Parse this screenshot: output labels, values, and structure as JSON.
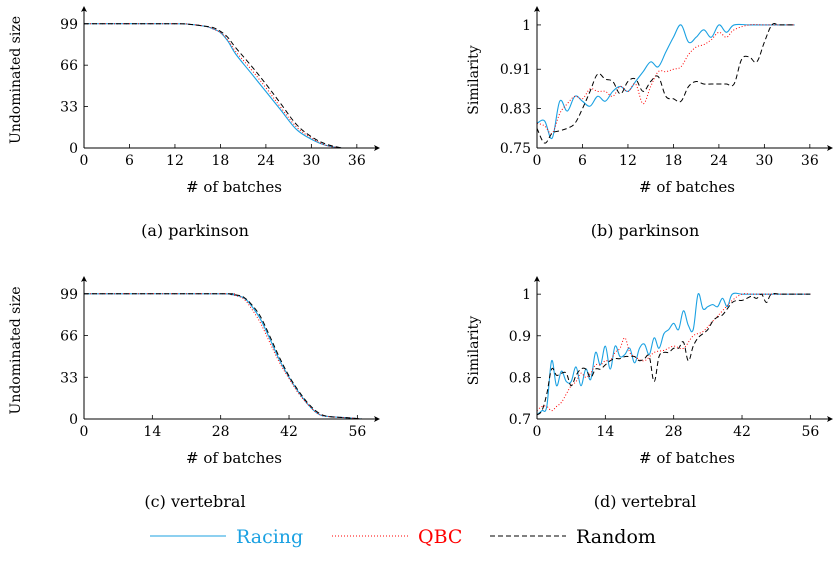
{
  "colors": {
    "racing": "#1ba1e2",
    "qbc": "#ff0000",
    "random": "#000000"
  },
  "legend": {
    "entries": [
      "Racing",
      "QBC",
      "Random"
    ],
    "placement": "bottom-center"
  },
  "chart_data": [
    {
      "type": "line",
      "caption": "(a)  parkinson",
      "xlabel": "# of batches",
      "ylabel": "Undominated size",
      "xlim": [
        0,
        38
      ],
      "ylim": [
        0,
        102
      ],
      "xticks": [
        0,
        6,
        12,
        18,
        24,
        30,
        36
      ],
      "yticks": [
        0,
        33,
        66,
        99
      ],
      "xtick_labels": [
        "0",
        "6",
        "12",
        "18",
        "24",
        "30",
        "36"
      ],
      "ytick_labels": [
        "0",
        "33",
        "66",
        "99"
      ],
      "series": [
        {
          "name": "Racing",
          "style": "solid",
          "x": [
            0,
            12,
            14,
            16,
            17,
            18,
            19,
            20,
            22,
            24,
            26,
            28,
            30,
            32,
            34
          ],
          "y": [
            99,
            99,
            98.5,
            97,
            95,
            92,
            85,
            75,
            60,
            45,
            30,
            15,
            7,
            2,
            0
          ]
        },
        {
          "name": "QBC",
          "style": "dotted",
          "x": [
            0,
            12,
            14,
            16,
            17,
            18,
            19,
            20,
            22,
            24,
            26,
            28,
            30,
            32,
            34
          ],
          "y": [
            99,
            99,
            98.5,
            97,
            95,
            92,
            86,
            77,
            63,
            48,
            32,
            17,
            8,
            2,
            0
          ]
        },
        {
          "name": "Random",
          "style": "dashed",
          "x": [
            0,
            12,
            14,
            16,
            17,
            18,
            19,
            20,
            22,
            24,
            26,
            28,
            30,
            32,
            34
          ],
          "y": [
            99,
            99,
            98.5,
            97,
            96,
            93,
            88,
            80,
            66,
            51,
            35,
            19,
            9,
            3,
            0
          ]
        }
      ]
    },
    {
      "type": "line",
      "caption": "(b)  parkinson",
      "xlabel": "# of batches",
      "ylabel": "Similarity",
      "xlim": [
        0,
        38
      ],
      "ylim": [
        0.75,
        1.01
      ],
      "xticks": [
        0,
        6,
        12,
        18,
        24,
        30,
        36
      ],
      "yticks": [
        0.75,
        0.83,
        0.91,
        1
      ],
      "xtick_labels": [
        "0",
        "6",
        "12",
        "18",
        "24",
        "30",
        "36"
      ],
      "ytick_labels": [
        "0.75",
        "0.83",
        "0.91",
        "1"
      ],
      "series": [
        {
          "name": "Racing",
          "style": "solid",
          "x": [
            0,
            1,
            2,
            3,
            4,
            5,
            6,
            7,
            8,
            9,
            10,
            11,
            12,
            13,
            14,
            15,
            16,
            17,
            18,
            19,
            20,
            21,
            22,
            23,
            24,
            25,
            26,
            28,
            30,
            32,
            34
          ],
          "y": [
            0.8,
            0.805,
            0.77,
            0.845,
            0.825,
            0.855,
            0.845,
            0.835,
            0.855,
            0.845,
            0.865,
            0.875,
            0.865,
            0.885,
            0.905,
            0.925,
            0.915,
            0.945,
            0.975,
            1.0,
            0.965,
            0.975,
            0.99,
            0.975,
            1.0,
            0.985,
            1.0,
            1.0,
            1.0,
            1.0,
            1.0
          ]
        },
        {
          "name": "QBC",
          "style": "dotted",
          "x": [
            0,
            1,
            2,
            3,
            4,
            5,
            6,
            7,
            8,
            9,
            10,
            11,
            12,
            13,
            14,
            15,
            16,
            17,
            18,
            19,
            20,
            21,
            22,
            23,
            24,
            25,
            26,
            28,
            30,
            32,
            34
          ],
          "y": [
            0.8,
            0.795,
            0.78,
            0.82,
            0.84,
            0.855,
            0.85,
            0.87,
            0.865,
            0.865,
            0.855,
            0.875,
            0.865,
            0.88,
            0.84,
            0.875,
            0.905,
            0.905,
            0.91,
            0.915,
            0.94,
            0.955,
            0.96,
            0.97,
            0.985,
            0.975,
            0.99,
            1.0,
            1.0,
            1.0,
            1.0
          ]
        },
        {
          "name": "Random",
          "style": "dashed",
          "x": [
            0,
            1,
            2,
            3,
            4,
            5,
            6,
            7,
            8,
            9,
            10,
            11,
            12,
            13,
            14,
            15,
            16,
            17,
            18,
            19,
            20,
            21,
            22,
            23,
            24,
            25,
            26,
            27,
            28,
            29,
            30,
            31,
            32,
            34
          ],
          "y": [
            0.79,
            0.76,
            0.78,
            0.785,
            0.79,
            0.8,
            0.83,
            0.865,
            0.9,
            0.89,
            0.885,
            0.86,
            0.885,
            0.89,
            0.865,
            0.885,
            0.895,
            0.855,
            0.85,
            0.845,
            0.875,
            0.885,
            0.88,
            0.88,
            0.88,
            0.88,
            0.88,
            0.93,
            0.935,
            0.925,
            0.965,
            1.0,
            1.0,
            1.0
          ]
        }
      ]
    },
    {
      "type": "line",
      "caption": "(c)  vertebral",
      "xlabel": "# of batches",
      "ylabel": "Undominated size",
      "xlim": [
        0,
        59
      ],
      "ylim": [
        0,
        102
      ],
      "xticks": [
        0,
        14,
        28,
        42,
        56
      ],
      "yticks": [
        0,
        33,
        66,
        99
      ],
      "xtick_labels": [
        "0",
        "14",
        "28",
        "42",
        "56"
      ],
      "ytick_labels": [
        "0",
        "33",
        "66",
        "99"
      ],
      "series": [
        {
          "name": "Racing",
          "style": "solid",
          "x": [
            0,
            28,
            30,
            32,
            33,
            34,
            36,
            38,
            40,
            42,
            44,
            46,
            48,
            50,
            54,
            57
          ],
          "y": [
            99,
            99,
            98.5,
            97,
            95,
            91,
            80,
            64,
            47,
            33,
            21,
            11,
            4,
            2,
            1,
            0
          ]
        },
        {
          "name": "QBC",
          "style": "dotted",
          "x": [
            0,
            28,
            30,
            32,
            33,
            34,
            36,
            38,
            40,
            42,
            44,
            46,
            48,
            50,
            54,
            57
          ],
          "y": [
            99,
            99,
            98.5,
            96.5,
            94,
            89,
            77,
            61,
            45,
            32,
            20,
            11,
            4,
            2,
            1,
            0
          ]
        },
        {
          "name": "Random",
          "style": "dashed",
          "x": [
            0,
            28,
            30,
            32,
            33,
            34,
            36,
            38,
            40,
            42,
            44,
            46,
            48,
            50,
            54,
            57
          ],
          "y": [
            99,
            99,
            98.7,
            97.5,
            95.5,
            92,
            82,
            66,
            49,
            34,
            22,
            12,
            5,
            2,
            1,
            0
          ]
        }
      ]
    },
    {
      "type": "line",
      "caption": "(d)  vertebral",
      "xlabel": "# of batches",
      "ylabel": "Similarity",
      "xlim": [
        0,
        59
      ],
      "ylim": [
        0.7,
        1.01
      ],
      "xticks": [
        0,
        14,
        28,
        42,
        56
      ],
      "yticks": [
        0.7,
        0.8,
        0.9,
        1
      ],
      "xtick_labels": [
        "0",
        "14",
        "28",
        "42",
        "56"
      ],
      "ytick_labels": [
        "0.7",
        "0.8",
        "0.9",
        "1"
      ],
      "series": [
        {
          "name": "Racing",
          "style": "solid",
          "x": [
            0,
            1,
            2,
            3,
            4,
            5,
            6,
            7,
            8,
            9,
            10,
            11,
            12,
            13,
            14,
            15,
            16,
            17,
            18,
            19,
            20,
            21,
            22,
            23,
            24,
            25,
            26,
            27,
            28,
            29,
            30,
            31,
            32,
            33,
            34,
            35,
            36,
            37,
            38,
            39,
            40,
            42,
            44,
            46,
            48,
            50,
            52,
            54,
            56
          ],
          "y": [
            0.71,
            0.72,
            0.73,
            0.84,
            0.78,
            0.815,
            0.79,
            0.79,
            0.825,
            0.78,
            0.82,
            0.795,
            0.86,
            0.83,
            0.875,
            0.82,
            0.875,
            0.85,
            0.855,
            0.87,
            0.835,
            0.87,
            0.88,
            0.855,
            0.895,
            0.87,
            0.905,
            0.915,
            0.93,
            0.915,
            0.96,
            0.925,
            0.915,
            1.0,
            0.965,
            0.97,
            0.975,
            0.97,
            0.99,
            0.97,
            1.0,
            1.0,
            1.0,
            1.0,
            1.0,
            1.0,
            1.0,
            1.0,
            1.0
          ]
        },
        {
          "name": "QBC",
          "style": "dotted",
          "x": [
            0,
            1,
            2,
            3,
            4,
            5,
            6,
            7,
            8,
            9,
            10,
            11,
            12,
            13,
            14,
            15,
            16,
            17,
            18,
            19,
            20,
            22,
            24,
            26,
            28,
            30,
            32,
            34,
            36,
            38,
            40,
            42,
            44,
            46,
            48,
            50,
            52,
            54,
            56
          ],
          "y": [
            0.72,
            0.73,
            0.73,
            0.72,
            0.73,
            0.74,
            0.76,
            0.78,
            0.79,
            0.81,
            0.8,
            0.81,
            0.83,
            0.83,
            0.84,
            0.84,
            0.86,
            0.87,
            0.895,
            0.86,
            0.85,
            0.84,
            0.86,
            0.865,
            0.875,
            0.87,
            0.9,
            0.91,
            0.935,
            0.96,
            0.985,
            1.0,
            1.0,
            1.0,
            1.0,
            1.0,
            1.0,
            1.0,
            1.0
          ]
        },
        {
          "name": "Random",
          "style": "dashed",
          "x": [
            0,
            1,
            2,
            3,
            4,
            5,
            6,
            7,
            8,
            9,
            10,
            11,
            12,
            13,
            14,
            15,
            16,
            17,
            18,
            19,
            20,
            21,
            22,
            23,
            24,
            25,
            26,
            27,
            28,
            29,
            30,
            31,
            32,
            33,
            34,
            35,
            36,
            37,
            38,
            39,
            40,
            41,
            42,
            43,
            44,
            45,
            46,
            47,
            48,
            50,
            52,
            54,
            56
          ],
          "y": [
            0.71,
            0.72,
            0.76,
            0.82,
            0.805,
            0.81,
            0.81,
            0.78,
            0.805,
            0.82,
            0.82,
            0.8,
            0.82,
            0.82,
            0.83,
            0.84,
            0.845,
            0.845,
            0.85,
            0.85,
            0.85,
            0.84,
            0.845,
            0.85,
            0.79,
            0.85,
            0.86,
            0.86,
            0.87,
            0.87,
            0.885,
            0.84,
            0.875,
            0.895,
            0.905,
            0.915,
            0.935,
            0.945,
            0.95,
            0.965,
            0.98,
            0.985,
            0.985,
            0.99,
            0.995,
            0.99,
            1.0,
            0.98,
            1.0,
            1.0,
            1.0,
            1.0,
            1.0
          ]
        }
      ]
    }
  ]
}
